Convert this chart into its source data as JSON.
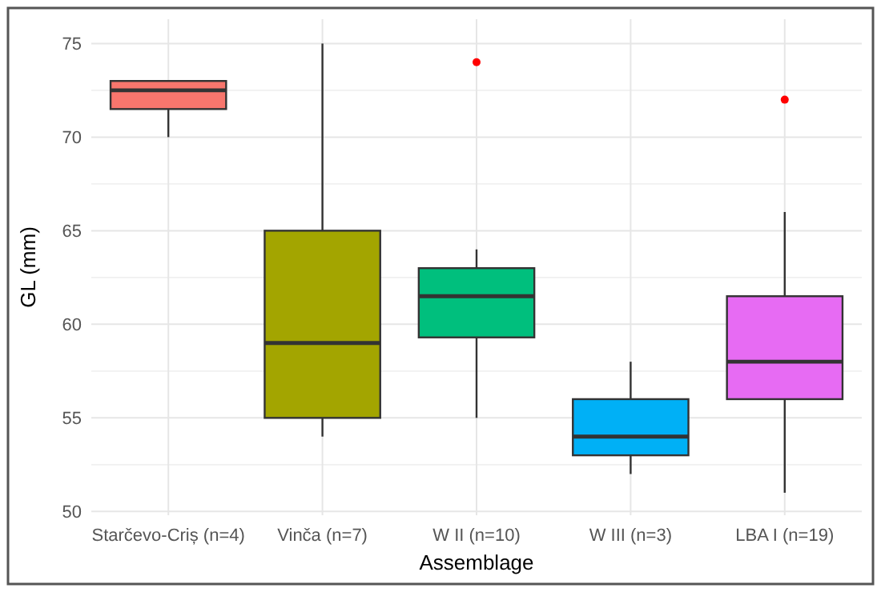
{
  "chart_data": {
    "type": "box",
    "xlabel": "Assemblage",
    "ylabel": "GL (mm)",
    "categories": [
      "Starčevo-Criș (n=4)",
      "Vinča (n=7)",
      "W II (n=10)",
      "W III (n=3)",
      "LBA I (n=19)"
    ],
    "colors": [
      "#f8766d",
      "#a3a500",
      "#00bf7d",
      "#00b0f6",
      "#e76bf3"
    ],
    "boxes": [
      {
        "low": 70,
        "q1": 71.5,
        "median": 72.5,
        "q3": 73,
        "high": 73
      },
      {
        "low": 54,
        "q1": 55,
        "median": 59,
        "q3": 65,
        "high": 75
      },
      {
        "low": 55,
        "q1": 59.3,
        "median": 61.5,
        "q3": 63,
        "high": 64,
        "outliers": [
          74
        ]
      },
      {
        "low": 52,
        "q1": 53,
        "median": 54,
        "q3": 56,
        "high": 58
      },
      {
        "low": 51,
        "q1": 56,
        "median": 58,
        "q3": 61.5,
        "high": 66,
        "outliers": [
          72
        ]
      }
    ],
    "ylim": [
      49.8,
      76.3
    ],
    "yticks": [
      50,
      55,
      60,
      65,
      70,
      75
    ],
    "grid": true
  }
}
